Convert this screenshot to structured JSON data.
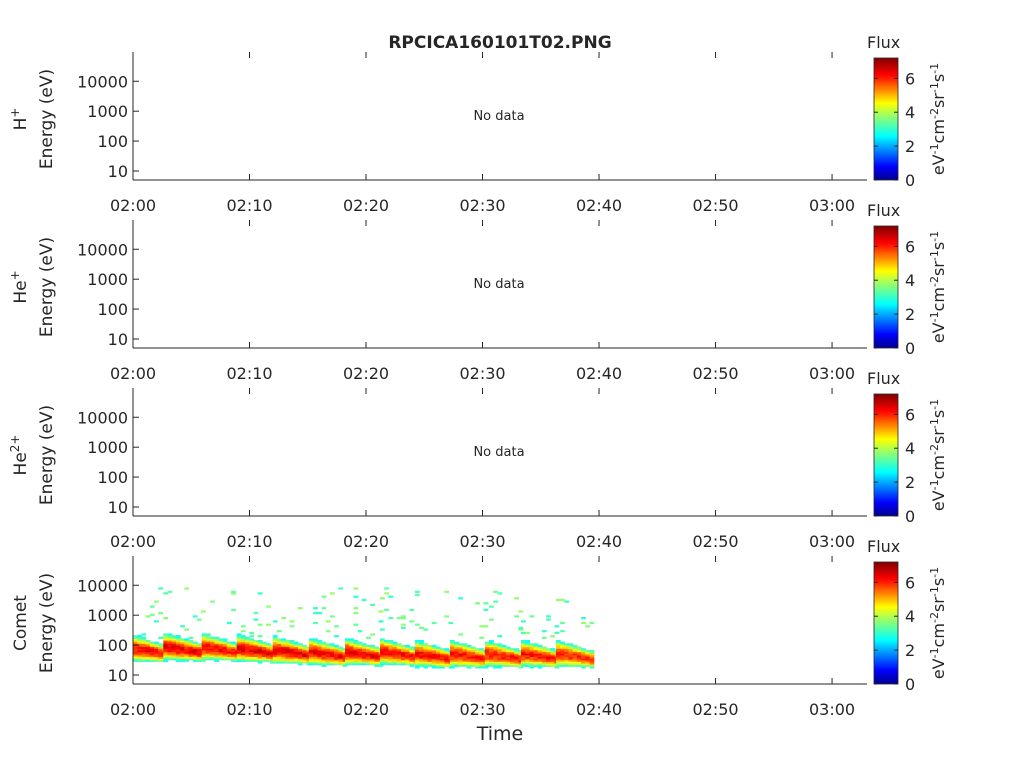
{
  "figure": {
    "title": "RPCICA160101T02.PNG",
    "xlabel": "Time"
  },
  "chart_data": [
    {
      "type": "heatmap",
      "panel": "H+",
      "species": "H",
      "species_sup": "+",
      "ylabel": "Energy (eV)",
      "yscale": "log",
      "ylim": [
        5,
        60000
      ],
      "yticks": [
        10,
        100,
        1000,
        10000
      ],
      "xticks": [
        "02:00",
        "02:10",
        "02:20",
        "02:30",
        "02:40",
        "02:50",
        "03:00"
      ],
      "xlim_minutes": [
        0,
        63
      ],
      "annotation": "No data",
      "colorbar": {
        "label": "Flux",
        "units": "eV-1cm-2sr-1s-1",
        "ticks": [
          0,
          2,
          4,
          6
        ],
        "range": [
          0,
          7.2
        ]
      },
      "bursts": []
    },
    {
      "type": "heatmap",
      "panel": "He+",
      "species": "He",
      "species_sup": "+",
      "ylabel": "Energy (eV)",
      "yscale": "log",
      "ylim": [
        5,
        60000
      ],
      "yticks": [
        10,
        100,
        1000,
        10000
      ],
      "xticks": [
        "02:00",
        "02:10",
        "02:20",
        "02:30",
        "02:40",
        "02:50",
        "03:00"
      ],
      "xlim_minutes": [
        0,
        63
      ],
      "annotation": "No data",
      "colorbar": {
        "label": "Flux",
        "units": "eV-1cm-2sr-1s-1",
        "ticks": [
          0,
          2,
          4,
          6
        ],
        "range": [
          0,
          7.2
        ]
      },
      "bursts": []
    },
    {
      "type": "heatmap",
      "panel": "He2+",
      "species": "He",
      "species_sup": "2+",
      "ylabel": "Energy (eV)",
      "yscale": "log",
      "ylim": [
        5,
        60000
      ],
      "yticks": [
        10,
        100,
        1000,
        10000
      ],
      "xticks": [
        "02:00",
        "02:10",
        "02:20",
        "02:30",
        "02:40",
        "02:50",
        "03:00"
      ],
      "xlim_minutes": [
        0,
        63
      ],
      "annotation": "No data",
      "colorbar": {
        "label": "Flux",
        "units": "eV-1cm-2sr-1s-1",
        "ticks": [
          0,
          2,
          4,
          6
        ],
        "range": [
          0,
          7.2
        ]
      },
      "bursts": []
    },
    {
      "type": "heatmap",
      "panel": "Comet",
      "species": "Comet",
      "species_sup": "",
      "ylabel": "Energy (eV)",
      "yscale": "log",
      "ylim": [
        5,
        60000
      ],
      "yticks": [
        10,
        100,
        1000,
        10000
      ],
      "xticks": [
        "02:00",
        "02:10",
        "02:20",
        "02:30",
        "02:40",
        "02:50",
        "03:00"
      ],
      "xlim_minutes": [
        0,
        63
      ],
      "annotation": "",
      "colorbar": {
        "label": "Flux",
        "units": "eV-1cm-2sr-1s-1",
        "ticks": [
          0,
          2,
          4,
          6
        ],
        "range": [
          0,
          7.2
        ]
      },
      "data_end_minute": 39.3,
      "bursts": [
        {
          "t_start": 0.0,
          "t_end": 2.6,
          "e_peak": 45,
          "max_flux": 6.6
        },
        {
          "t_start": 2.6,
          "t_end": 5.9,
          "e_peak": 50,
          "max_flux": 6.8
        },
        {
          "t_start": 5.9,
          "t_end": 8.9,
          "e_peak": 50,
          "max_flux": 6.6
        },
        {
          "t_start": 8.9,
          "t_end": 12.0,
          "e_peak": 45,
          "max_flux": 6.8
        },
        {
          "t_start": 12.0,
          "t_end": 15.1,
          "e_peak": 40,
          "max_flux": 6.8
        },
        {
          "t_start": 15.1,
          "t_end": 18.2,
          "e_peak": 35,
          "max_flux": 6.7
        },
        {
          "t_start": 18.2,
          "t_end": 21.2,
          "e_peak": 35,
          "max_flux": 6.7
        },
        {
          "t_start": 21.2,
          "t_end": 24.2,
          "e_peak": 35,
          "max_flux": 6.6
        },
        {
          "t_start": 24.2,
          "t_end": 27.2,
          "e_peak": 30,
          "max_flux": 6.6
        },
        {
          "t_start": 27.2,
          "t_end": 30.2,
          "e_peak": 30,
          "max_flux": 6.6
        },
        {
          "t_start": 30.2,
          "t_end": 33.3,
          "e_peak": 30,
          "max_flux": 6.5
        },
        {
          "t_start": 33.3,
          "t_end": 36.3,
          "e_peak": 30,
          "max_flux": 6.5
        },
        {
          "t_start": 36.3,
          "t_end": 39.3,
          "e_peak": 30,
          "max_flux": 6.4
        }
      ]
    }
  ]
}
